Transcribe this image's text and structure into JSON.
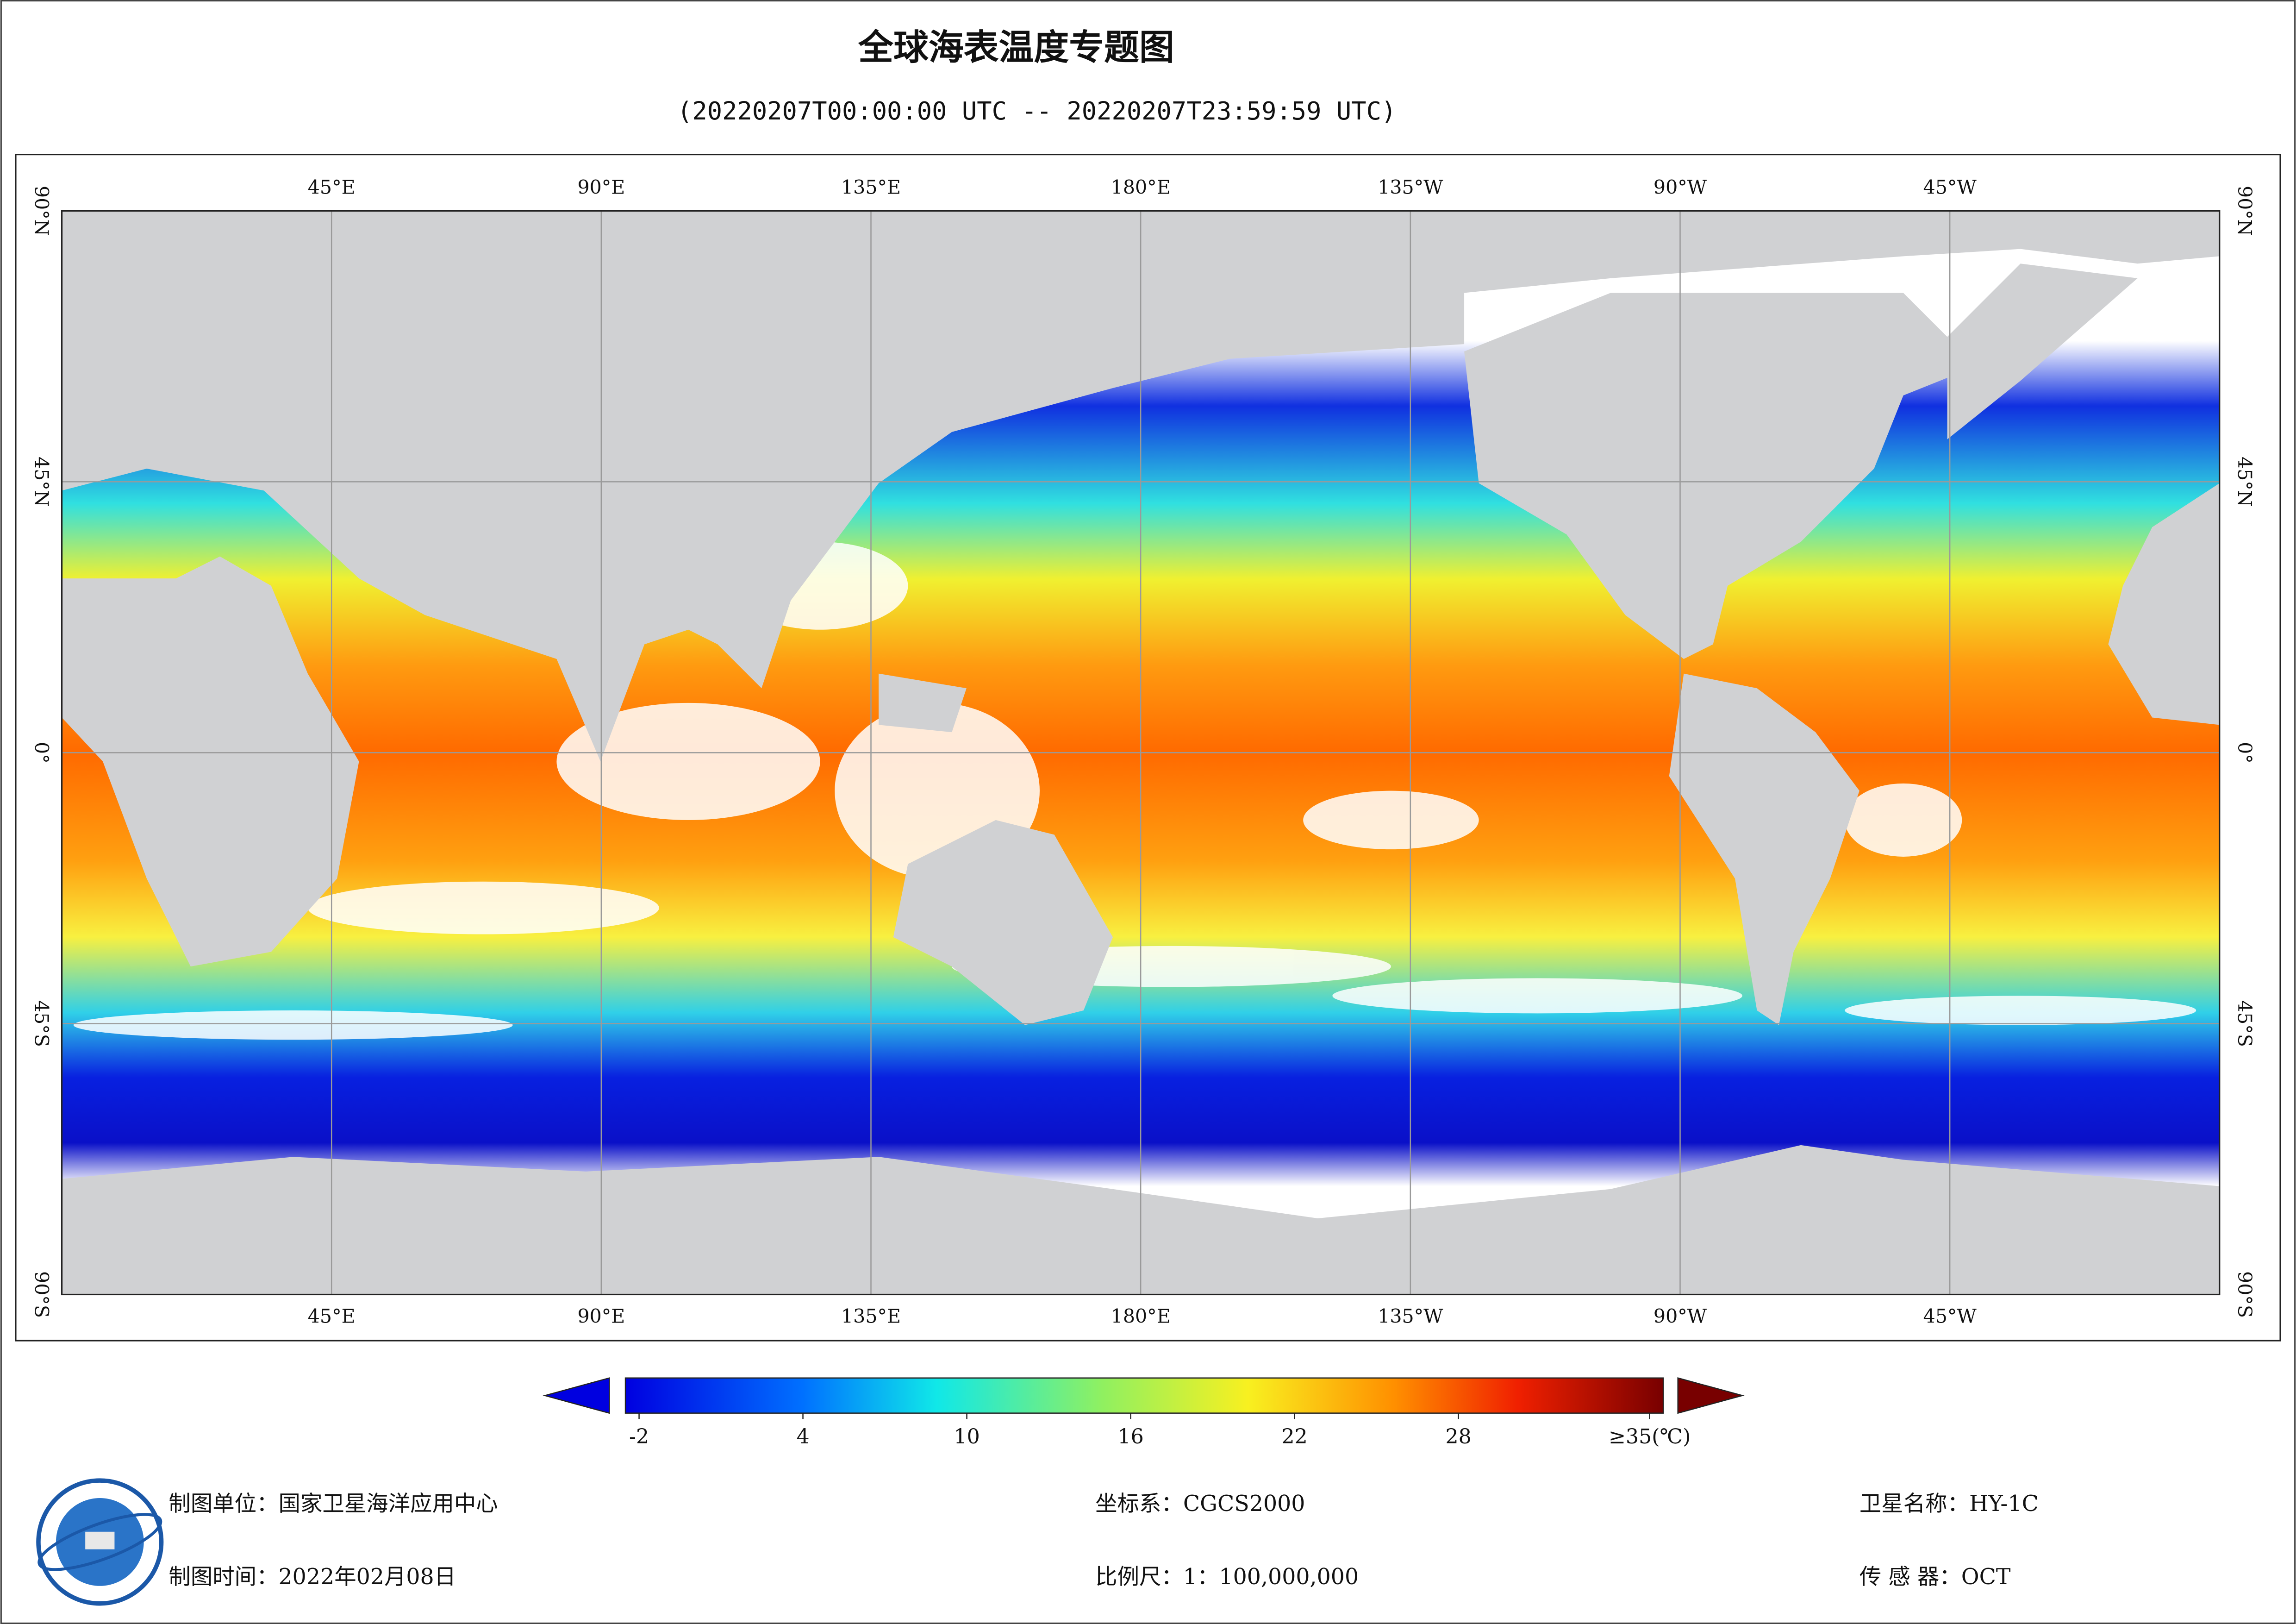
{
  "title": "全球海表温度专题图",
  "subtitle": "(20220207T00:00:00 UTC -- 20220207T23:59:59 UTC)",
  "map": {
    "xlim": [
      0,
      360
    ],
    "ylim": [
      -90,
      90
    ],
    "lon_ticks": [
      {
        "value": 45,
        "label": "45°E"
      },
      {
        "value": 90,
        "label": "90°E"
      },
      {
        "value": 135,
        "label": "135°E"
      },
      {
        "value": 180,
        "label": "180°E"
      },
      {
        "value": 225,
        "label": "135°W"
      },
      {
        "value": 270,
        "label": "90°W"
      },
      {
        "value": 315,
        "label": "45°W"
      }
    ],
    "lat_ticks": [
      {
        "value": 90,
        "label": "90°N"
      },
      {
        "value": 45,
        "label": "45°N"
      },
      {
        "value": 0,
        "label": "0°"
      },
      {
        "value": -45,
        "label": "45°S"
      },
      {
        "value": -90,
        "label": "90°S"
      }
    ]
  },
  "colorbar": {
    "range": [
      -2.5,
      35.5
    ],
    "ticks": [
      -2,
      4,
      10,
      16,
      22,
      28,
      {
        "value": 35,
        "label": "≥35(℃)"
      }
    ]
  },
  "footer": {
    "unit": "制图单位：国家卫星海洋应用中心",
    "time": "制图时间：2022年02月08日",
    "crs": "坐标系：CGCS2000",
    "scale": "比例尺：1：100,000,000",
    "satellite": "卫星名称：HY-1C",
    "sensor": "传 感 器：OCT"
  }
}
